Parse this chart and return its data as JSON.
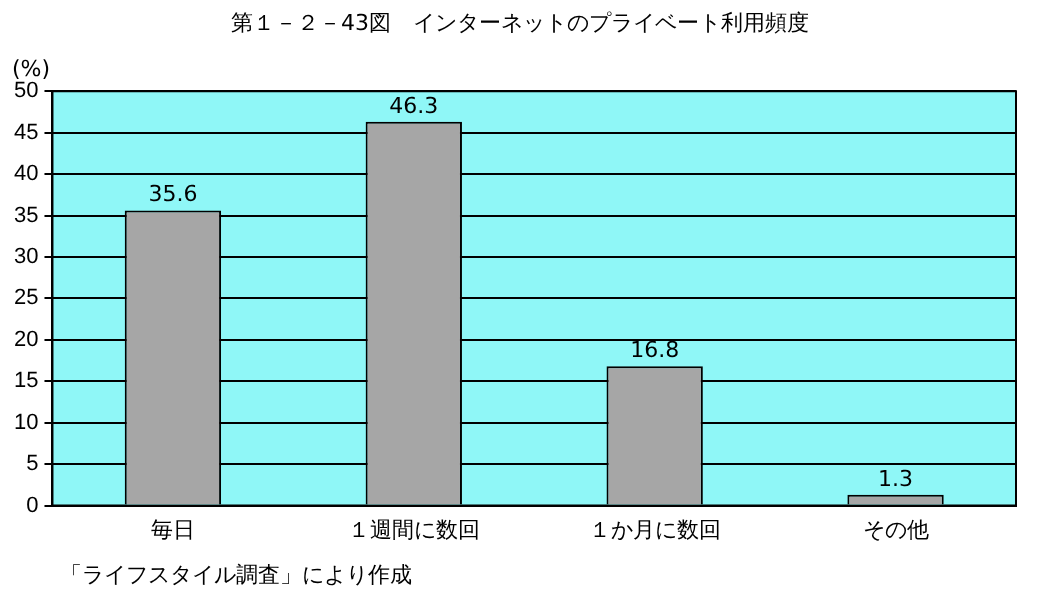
{
  "chart_data": {
    "type": "bar",
    "title": "第１－２－43図　インターネットのプライベート利用頻度",
    "ylabel": "(%)",
    "categories": [
      "毎日",
      "１週間に数回",
      "１か月に数回",
      "その他"
    ],
    "values": [
      35.6,
      46.3,
      16.8,
      1.3
    ],
    "color": "#a6a6a6",
    "ylim": [
      0,
      50
    ],
    "yticks": [
      0,
      5,
      10,
      15,
      20,
      25,
      30,
      35,
      40,
      45,
      50
    ],
    "grid": "y",
    "legend": false,
    "data_labels": true,
    "annotations": [
      "「ライフスタイル調査」により作成"
    ]
  }
}
